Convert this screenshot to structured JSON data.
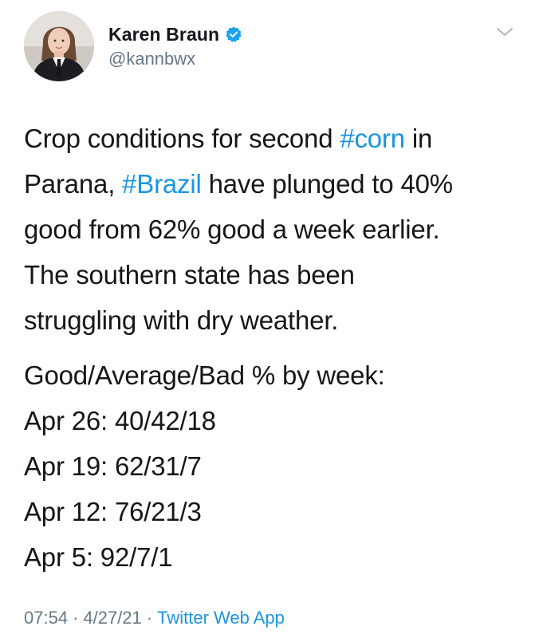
{
  "author": {
    "display_name": "Karen Braun",
    "handle": "@kannbwx",
    "verified": true,
    "avatar_icon": "profile-photo"
  },
  "menu_icon": "chevron-down-icon",
  "colors": {
    "link": "#1b95e0",
    "secondary_text": "#657786",
    "verified_badge": "#1da1f2",
    "primary_text": "#14171a"
  },
  "tweet": {
    "line1_pre": "Crop conditions for second ",
    "hashtag_corn": "#corn",
    "line1_post": " in",
    "line2_pre": "Parana, ",
    "hashtag_brazil": "#Brazil",
    "line2_post": " have plunged to 40%",
    "line3": "good from 62% good a week earlier.",
    "line4": "The southern state has been",
    "line5": "struggling with dry weather.",
    "stats_header": "Good/Average/Bad % by week:",
    "stats": [
      "Apr 26: 40/42/18",
      "Apr 19: 62/31/7",
      "Apr 12: 76/21/3",
      "Apr 5: 92/7/1"
    ]
  },
  "footer": {
    "time": "07:54",
    "separator": "·",
    "date": "4/27/21",
    "source": "Twitter Web App"
  }
}
